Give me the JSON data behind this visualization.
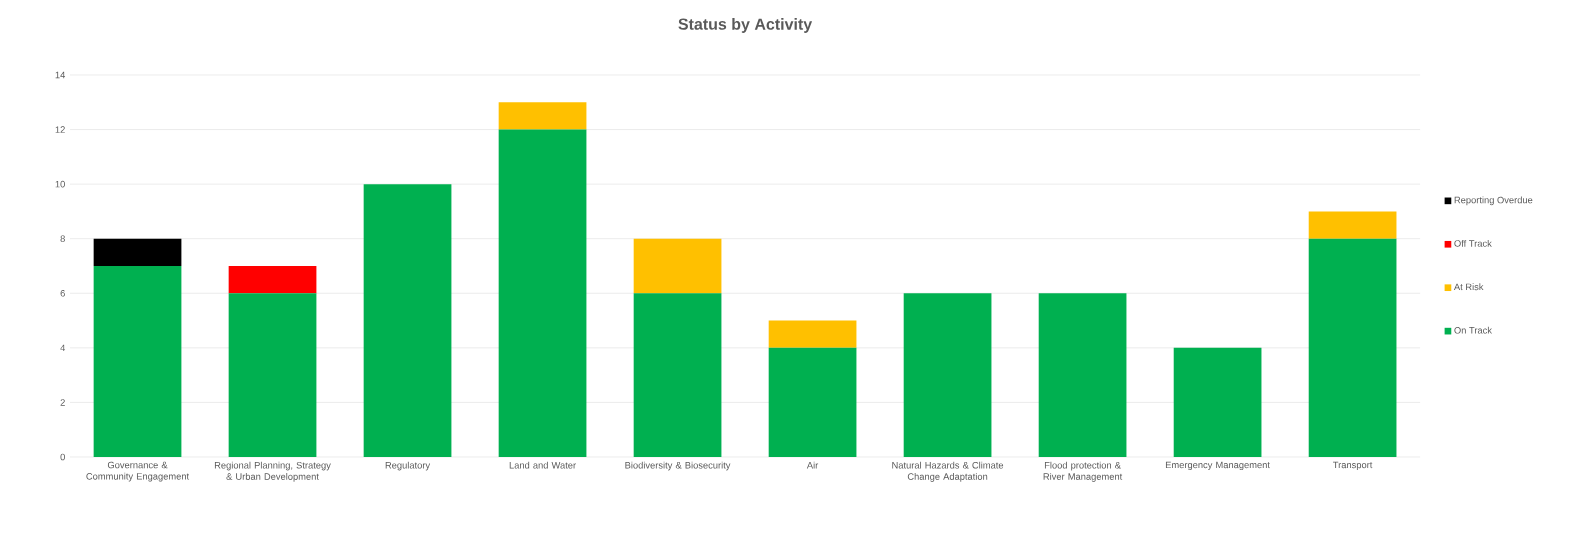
{
  "chart_data": {
    "type": "bar",
    "title": "Status by Activity",
    "stacked": true,
    "grid": "y",
    "legend": "right",
    "categories": [
      "Governance & Community Engagement",
      "Regional Planning, Strategy & Urban Development",
      "Regulatory",
      "Land and Water",
      "Biodiversity & Biosecurity",
      "Air",
      "Natural Hazards & Climate Change Adaptation",
      "Flood protection & River Management",
      "Emergency Management",
      "Transport"
    ],
    "series": [
      {
        "name": "On Track",
        "color": "#00b050",
        "values": [
          7,
          6,
          10,
          12,
          6,
          4,
          6,
          6,
          4,
          8
        ]
      },
      {
        "name": "At Risk",
        "color": "#ffc000",
        "values": [
          0,
          0,
          0,
          1,
          2,
          1,
          0,
          0,
          0,
          1
        ]
      },
      {
        "name": "Off Track",
        "color": "#ff0000",
        "values": [
          0,
          1,
          0,
          0,
          0,
          0,
          0,
          0,
          0,
          0
        ]
      },
      {
        "name": "Reporting Overdue",
        "color": "#000000",
        "values": [
          1,
          0,
          0,
          0,
          0,
          0,
          0,
          0,
          0,
          0
        ]
      }
    ],
    "ylim": [
      0,
      14
    ],
    "yticks": [
      0,
      2,
      4,
      6,
      8,
      10,
      12,
      14
    ]
  }
}
